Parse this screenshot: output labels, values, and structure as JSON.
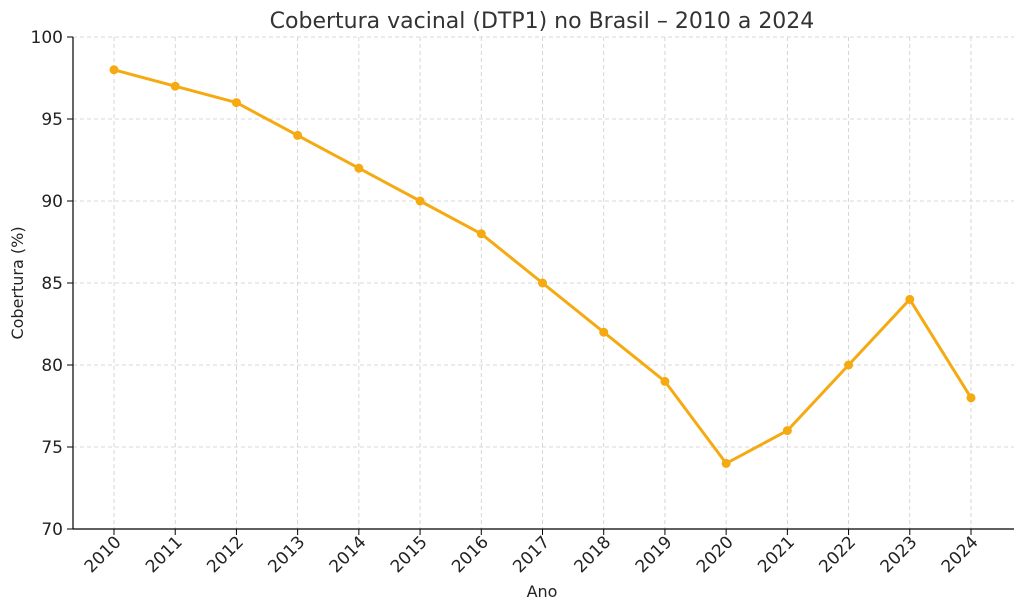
{
  "chart_data": {
    "type": "line",
    "title": "Cobertura vacinal (DTP1) no Brasil – 2010 a 2024",
    "xlabel": "Ano",
    "ylabel": "Cobertura (%)",
    "x": [
      "2010",
      "2011",
      "2012",
      "2013",
      "2014",
      "2015",
      "2016",
      "2017",
      "2018",
      "2019",
      "2020",
      "2021",
      "2022",
      "2023",
      "2024"
    ],
    "series": [
      {
        "values": [
          98,
          97,
          96,
          94,
          92,
          90,
          88,
          85,
          82,
          79,
          74,
          76,
          80,
          84,
          78
        ],
        "color": "#F5AA12"
      }
    ],
    "ylim": [
      70,
      100
    ],
    "yticks": [
      "70",
      "75",
      "80",
      "85",
      "90",
      "95",
      "100"
    ],
    "grid": true,
    "legend": "none"
  }
}
